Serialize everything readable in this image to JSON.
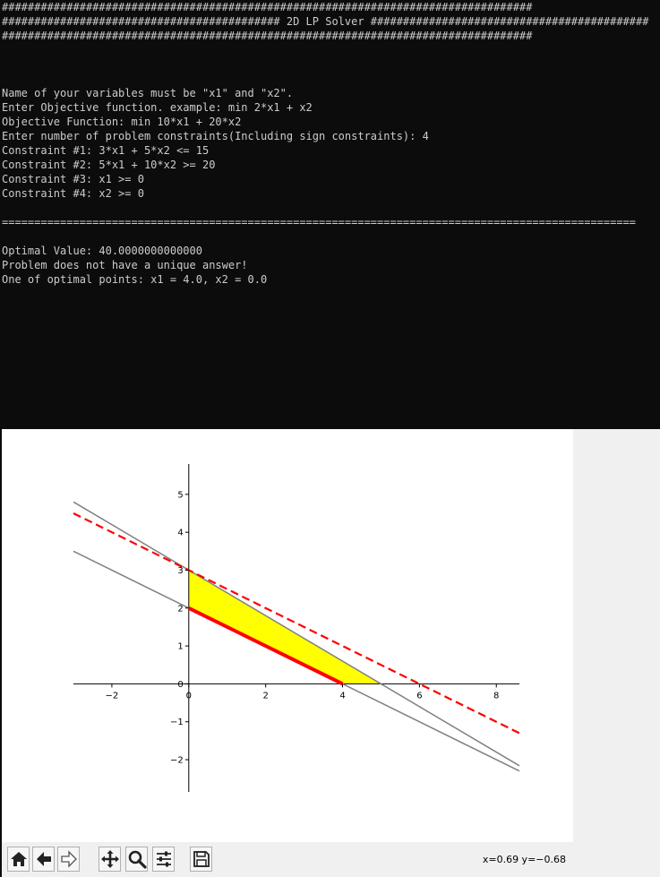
{
  "console": {
    "lines": [
      "##################################################################################",
      "########################################### 2D LP Solver ###########################################",
      "##################################################################################",
      "",
      "",
      "",
      "Name of your variables must be \"x1\" and \"x2\".",
      "Enter Objective function. example: min 2*x1 + x2",
      "Objective Function: min 10*x1 + 20*x2",
      "Enter number of problem constraints(Including sign constraints): 4",
      "Constraint #1: 3*x1 + 5*x2 <= 15",
      "Constraint #2: 5*x1 + 10*x2 >= 20",
      "Constraint #3: x1 >= 0",
      "Constraint #4: x2 >= 0",
      "",
      "==================================================================================================",
      "",
      "Optimal Value: 40.0000000000000",
      "Problem does not have a unique answer!",
      "One of optimal points: x1 = 4.0, x2 = 0.0"
    ]
  },
  "chart_data": {
    "type": "line",
    "title": "",
    "xlabel": "",
    "ylabel": "",
    "xlim": [
      -3,
      8.6
    ],
    "ylim": [
      -2.85,
      5.8
    ],
    "x_ticks": [
      -2,
      0,
      2,
      4,
      6,
      8
    ],
    "y_ticks": [
      -2,
      -1,
      0,
      1,
      2,
      3,
      4,
      5
    ],
    "grid": false,
    "feasible_region": [
      [
        0,
        2
      ],
      [
        0,
        3
      ],
      [
        5,
        0
      ],
      [
        4,
        0
      ]
    ],
    "feasible_color": "#ffff00",
    "series": [
      {
        "equation": "3*x1 + 5*x2 = 15",
        "x": [
          -3,
          8.6
        ],
        "y": [
          4.8,
          -2.16
        ],
        "color": "#808080",
        "style": "solid"
      },
      {
        "equation": "5*x1 + 10*x2 = 20",
        "x": [
          -3,
          8.6
        ],
        "y": [
          3.5,
          -2.3
        ],
        "color": "#808080",
        "style": "solid"
      },
      {
        "equation": "objective 10*x1 + 20*x2 = 60",
        "x": [
          -3,
          8.6
        ],
        "y": [
          4.5,
          -1.3
        ],
        "color": "#ff0000",
        "style": "dashed"
      },
      {
        "equation": "optimal segment",
        "x": [
          0,
          4
        ],
        "y": [
          2,
          0
        ],
        "color": "#ff0000",
        "style": "solid-thick"
      }
    ]
  },
  "toolbar": {
    "buttons": [
      {
        "name": "home-button",
        "icon": "home-icon"
      },
      {
        "name": "back-button",
        "icon": "arrow-left-icon"
      },
      {
        "name": "forward-button",
        "icon": "arrow-right-icon"
      },
      {
        "name": "pan-button",
        "icon": "move-icon"
      },
      {
        "name": "zoom-button",
        "icon": "magnifier-icon"
      },
      {
        "name": "configure-button",
        "icon": "sliders-icon"
      },
      {
        "name": "save-button",
        "icon": "floppy-icon"
      }
    ],
    "coords": "x=0.69 y=−0.68"
  }
}
